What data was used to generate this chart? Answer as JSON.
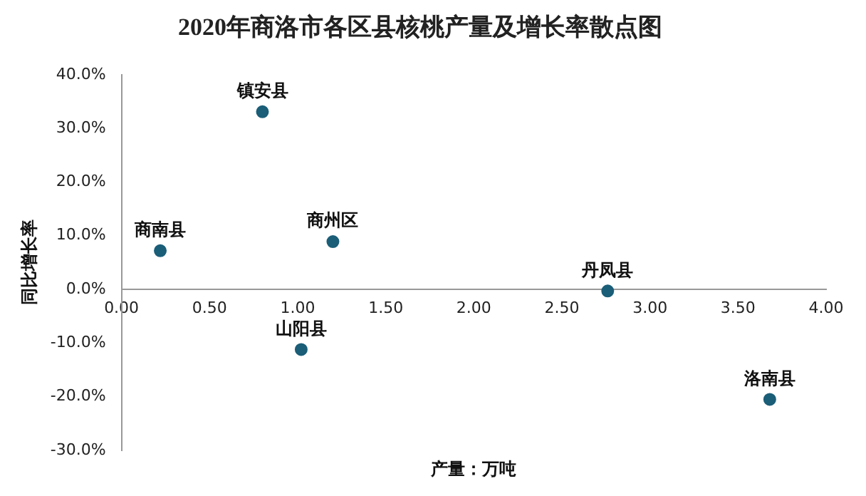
{
  "chart_data": {
    "type": "scatter",
    "title": "2020年商洛市各区县核桃产量及增长率散点图",
    "xlabel": "产量：万吨",
    "ylabel": "同比增长率",
    "x": [
      0.22,
      0.8,
      1.2,
      1.02,
      2.76,
      3.68
    ],
    "values": [
      7.2,
      33.1,
      8.9,
      -11.2,
      -0.3,
      -20.5
    ],
    "color": "#1b5e78",
    "marker": "circle",
    "grid": false,
    "legend": false,
    "xlim": [
      0,
      4
    ],
    "xticks": [
      {
        "value": 0,
        "label": "0.00"
      },
      {
        "value": 0.5,
        "label": "0.50"
      },
      {
        "value": 1,
        "label": "1.00"
      },
      {
        "value": 1.5,
        "label": "1.50"
      },
      {
        "value": 2,
        "label": "2.00"
      },
      {
        "value": 2.5,
        "label": "2.50"
      },
      {
        "value": 3,
        "label": "3.00"
      },
      {
        "value": 3.5,
        "label": "3.50"
      },
      {
        "value": 4,
        "label": "4.00"
      }
    ],
    "ylim": [
      -30,
      40
    ],
    "yticks": [
      {
        "value": -30,
        "label": "-30.0%"
      },
      {
        "value": -20,
        "label": "-20.0%"
      },
      {
        "value": -10,
        "label": "-10.0%"
      },
      {
        "value": 0,
        "label": "0.0%"
      },
      {
        "value": 10,
        "label": "10.0%"
      },
      {
        "value": 20,
        "label": "20.0%"
      },
      {
        "value": 30,
        "label": "30.0%"
      },
      {
        "value": 40,
        "label": "40.0%"
      }
    ],
    "annotations": [
      {
        "text": "商南县",
        "x": 0.22,
        "y": 7.2
      },
      {
        "text": "镇安县",
        "x": 0.8,
        "y": 33.1
      },
      {
        "text": "商州区",
        "x": 1.2,
        "y": 8.9
      },
      {
        "text": "山阳县",
        "x": 1.02,
        "y": -11.2
      },
      {
        "text": "丹凤县",
        "x": 2.76,
        "y": -0.3
      },
      {
        "text": "洛南县",
        "x": 3.68,
        "y": -20.5
      }
    ]
  }
}
